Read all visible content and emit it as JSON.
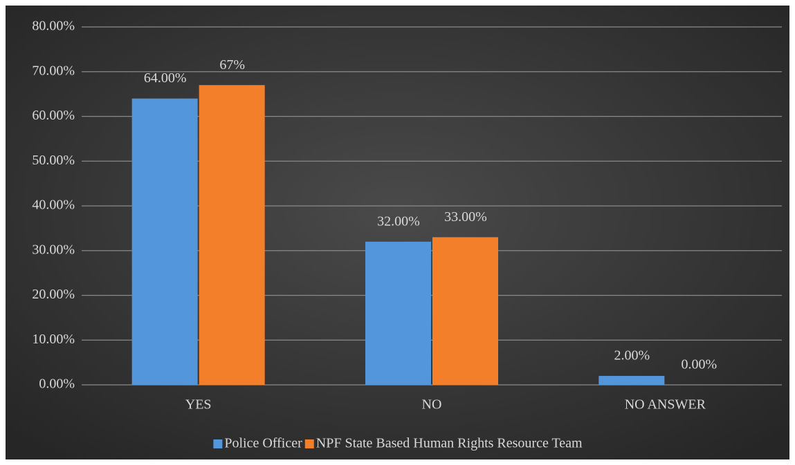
{
  "chart_data": {
    "type": "bar",
    "categories": [
      "YES",
      "NO",
      "NO ANSWER"
    ],
    "series": [
      {
        "name": "Police Officer",
        "color": "#5396dc",
        "values": [
          64,
          32,
          2
        ],
        "value_labels": [
          "64.00%",
          "32.00%",
          "2.00%"
        ]
      },
      {
        "name": "NPF State Based Human Rights Resource Team",
        "color": "#f47f2b",
        "values": [
          67,
          33,
          0
        ],
        "value_labels": [
          "67%",
          "33.00%",
          "0.00%"
        ]
      }
    ],
    "ylim": [
      0,
      80
    ],
    "yticks": [
      {
        "value": 0,
        "label": "0.00%"
      },
      {
        "value": 10,
        "label": "10.00%"
      },
      {
        "value": 20,
        "label": "20.00%"
      },
      {
        "value": 30,
        "label": "30.00%"
      },
      {
        "value": 40,
        "label": "40.00%"
      },
      {
        "value": 50,
        "label": "50.00%"
      },
      {
        "value": 60,
        "label": "60.00%"
      },
      {
        "value": 70,
        "label": "70.00%"
      },
      {
        "value": 80,
        "label": "80.00%"
      }
    ],
    "grid": true,
    "legend": "bottom"
  }
}
